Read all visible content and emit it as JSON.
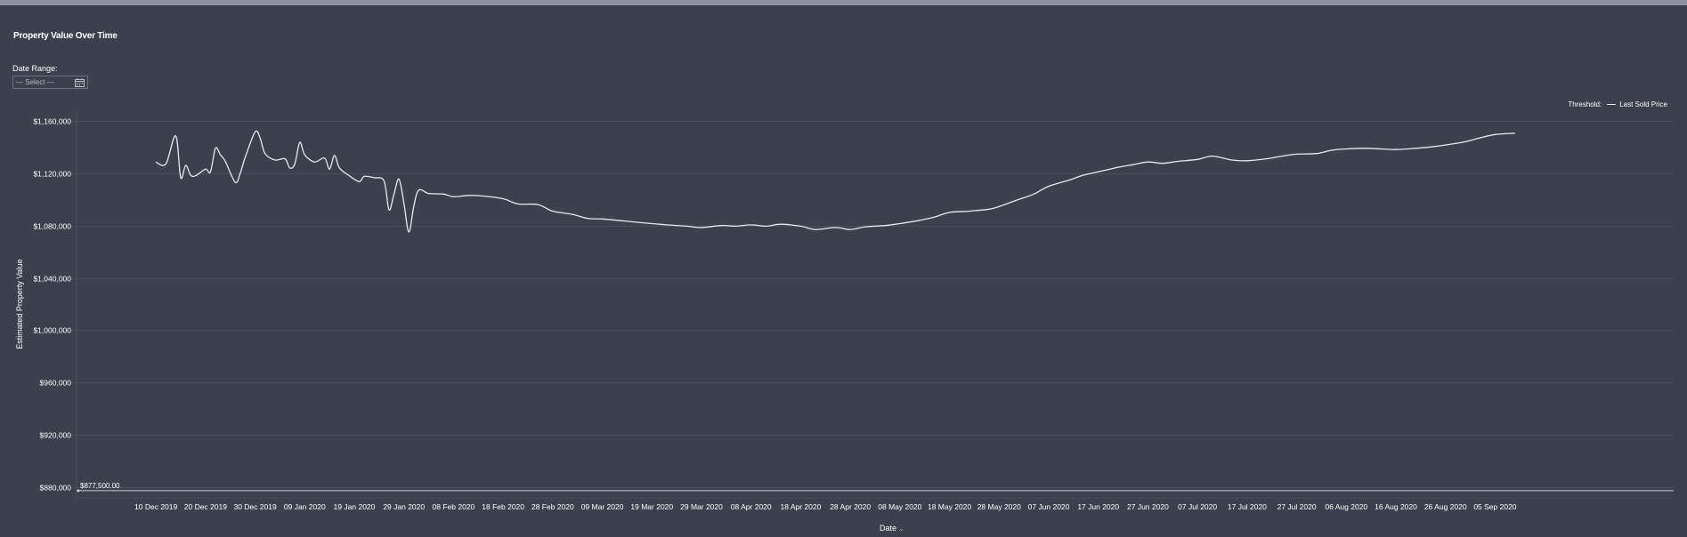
{
  "title": "Property Value Over Time",
  "date_range": {
    "label": "Date Range:",
    "placeholder": "— Select —",
    "icon": "calendar-icon"
  },
  "legend": {
    "label": "Threshold:",
    "item": "Last Sold Price"
  },
  "threshold_label": "$877,500.00",
  "colors": {
    "background": "#3c3f4d",
    "line": "#e8e9f2",
    "grid": "#4b4e5d",
    "threshold": "#c9cad6"
  },
  "chart_data": {
    "type": "line",
    "title": "Property Value Over Time",
    "xlabel": "Date",
    "ylabel": "Estimated Property Value",
    "ylim": [
      872000,
      1166000
    ],
    "y_ticks": [
      "$880,000",
      "$920,000",
      "$960,000",
      "$1,000,000",
      "$1,040,000",
      "$1,080,000",
      "$1,120,000",
      "$1,160,000"
    ],
    "y_tick_values": [
      880000,
      920000,
      960000,
      1000000,
      1040000,
      1080000,
      1120000,
      1160000
    ],
    "x_ticks": [
      "10 Dec 2019",
      "20 Dec 2019",
      "30 Dec 2019",
      "09 Jan 2020",
      "19 Jan 2020",
      "29 Jan 2020",
      "08 Feb 2020",
      "18 Feb 2020",
      "28 Feb 2020",
      "09 Mar 2020",
      "19 Mar 2020",
      "29 Mar 2020",
      "08 Apr 2020",
      "18 Apr 2020",
      "28 Apr 2020",
      "08 May 2020",
      "18 May 2020",
      "28 May 2020",
      "07 Jun 2020",
      "17 Jun 2020",
      "27 Jun 2020",
      "07 Jul 2020",
      "17 Jul 2020",
      "27 Jul 2020",
      "06 Aug 2020",
      "16 Aug 2020",
      "26 Aug 2020",
      "05 Sep 2020"
    ],
    "x_tick_values": [
      "2019-12-10",
      "2019-12-20",
      "2019-12-30",
      "2020-01-09",
      "2020-01-19",
      "2020-01-29",
      "2020-02-08",
      "2020-02-18",
      "2020-02-28",
      "2020-03-09",
      "2020-03-19",
      "2020-03-29",
      "2020-04-08",
      "2020-04-18",
      "2020-04-28",
      "2020-05-08",
      "2020-05-18",
      "2020-05-28",
      "2020-06-07",
      "2020-06-17",
      "2020-06-27",
      "2020-07-07",
      "2020-07-17",
      "2020-07-27",
      "2020-08-06",
      "2020-08-16",
      "2020-08-26",
      "2020-09-05"
    ],
    "xlim": [
      "2019-11-24",
      "2020-10-11"
    ],
    "grid": true,
    "legend_position": "top-right",
    "threshold": 877500,
    "series": [
      {
        "name": "",
        "x": [
          "2019-12-10",
          "2019-12-12",
          "2019-12-14",
          "2019-12-15",
          "2019-12-16",
          "2019-12-17",
          "2019-12-18",
          "2019-12-20",
          "2019-12-21",
          "2019-12-22",
          "2019-12-23",
          "2019-12-24",
          "2019-12-26",
          "2019-12-27",
          "2019-12-28",
          "2019-12-30",
          "2019-12-31",
          "2020-01-01",
          "2020-01-03",
          "2020-01-05",
          "2020-01-06",
          "2020-01-07",
          "2020-01-08",
          "2020-01-09",
          "2020-01-11",
          "2020-01-13",
          "2020-01-14",
          "2020-01-15",
          "2020-01-16",
          "2020-01-18",
          "2020-01-20",
          "2020-01-21",
          "2020-01-23",
          "2020-01-25",
          "2020-01-26",
          "2020-01-27",
          "2020-01-28",
          "2020-01-29",
          "2020-01-30",
          "2020-01-31",
          "2020-02-01",
          "2020-02-03",
          "2020-02-06",
          "2020-02-08",
          "2020-02-11",
          "2020-02-14",
          "2020-02-18",
          "2020-02-21",
          "2020-02-25",
          "2020-02-28",
          "2020-03-03",
          "2020-03-06",
          "2020-03-09",
          "2020-03-12",
          "2020-03-16",
          "2020-03-19",
          "2020-03-22",
          "2020-03-26",
          "2020-03-29",
          "2020-04-02",
          "2020-04-05",
          "2020-04-08",
          "2020-04-11",
          "2020-04-14",
          "2020-04-18",
          "2020-04-21",
          "2020-04-25",
          "2020-04-28",
          "2020-05-01",
          "2020-05-05",
          "2020-05-08",
          "2020-05-12",
          "2020-05-15",
          "2020-05-18",
          "2020-05-22",
          "2020-05-26",
          "2020-05-28",
          "2020-06-01",
          "2020-06-04",
          "2020-06-07",
          "2020-06-11",
          "2020-06-14",
          "2020-06-17",
          "2020-06-21",
          "2020-06-24",
          "2020-06-27",
          "2020-06-30",
          "2020-07-03",
          "2020-07-07",
          "2020-07-10",
          "2020-07-14",
          "2020-07-17",
          "2020-07-21",
          "2020-07-24",
          "2020-07-27",
          "2020-07-31",
          "2020-08-03",
          "2020-08-06",
          "2020-08-10",
          "2020-08-13",
          "2020-08-16",
          "2020-08-20",
          "2020-08-23",
          "2020-08-26",
          "2020-08-30",
          "2020-09-02",
          "2020-09-05",
          "2020-09-09"
        ],
        "y": [
          1128500,
          1127000,
          1148500,
          1116500,
          1126000,
          1118500,
          1118000,
          1123000,
          1121000,
          1139000,
          1134000,
          1129000,
          1113000,
          1120000,
          1132000,
          1151500,
          1147000,
          1135000,
          1130000,
          1131000,
          1124000,
          1127000,
          1143500,
          1134000,
          1128500,
          1131500,
          1123000,
          1133500,
          1124000,
          1118000,
          1113500,
          1117500,
          1116500,
          1114000,
          1092000,
          1104000,
          1115500,
          1097000,
          1075000,
          1095000,
          1107000,
          1104500,
          1104000,
          1102000,
          1103000,
          1102500,
          1100500,
          1096500,
          1096000,
          1091000,
          1088500,
          1085500,
          1085000,
          1084000,
          1082500,
          1081500,
          1080500,
          1079500,
          1078500,
          1080000,
          1079500,
          1080500,
          1079500,
          1081000,
          1079500,
          1077000,
          1078500,
          1077000,
          1079000,
          1080000,
          1081500,
          1084000,
          1086500,
          1090000,
          1091000,
          1092500,
          1094500,
          1100000,
          1104000,
          1110000,
          1114500,
          1118500,
          1121000,
          1124500,
          1126500,
          1128500,
          1127500,
          1129000,
          1130500,
          1133000,
          1130000,
          1129500,
          1131000,
          1133000,
          1134500,
          1135000,
          1137500,
          1138500,
          1139000,
          1138500,
          1138000,
          1139000,
          1140000,
          1141500,
          1144000,
          1147000,
          1149500,
          1150500
        ]
      }
    ]
  }
}
